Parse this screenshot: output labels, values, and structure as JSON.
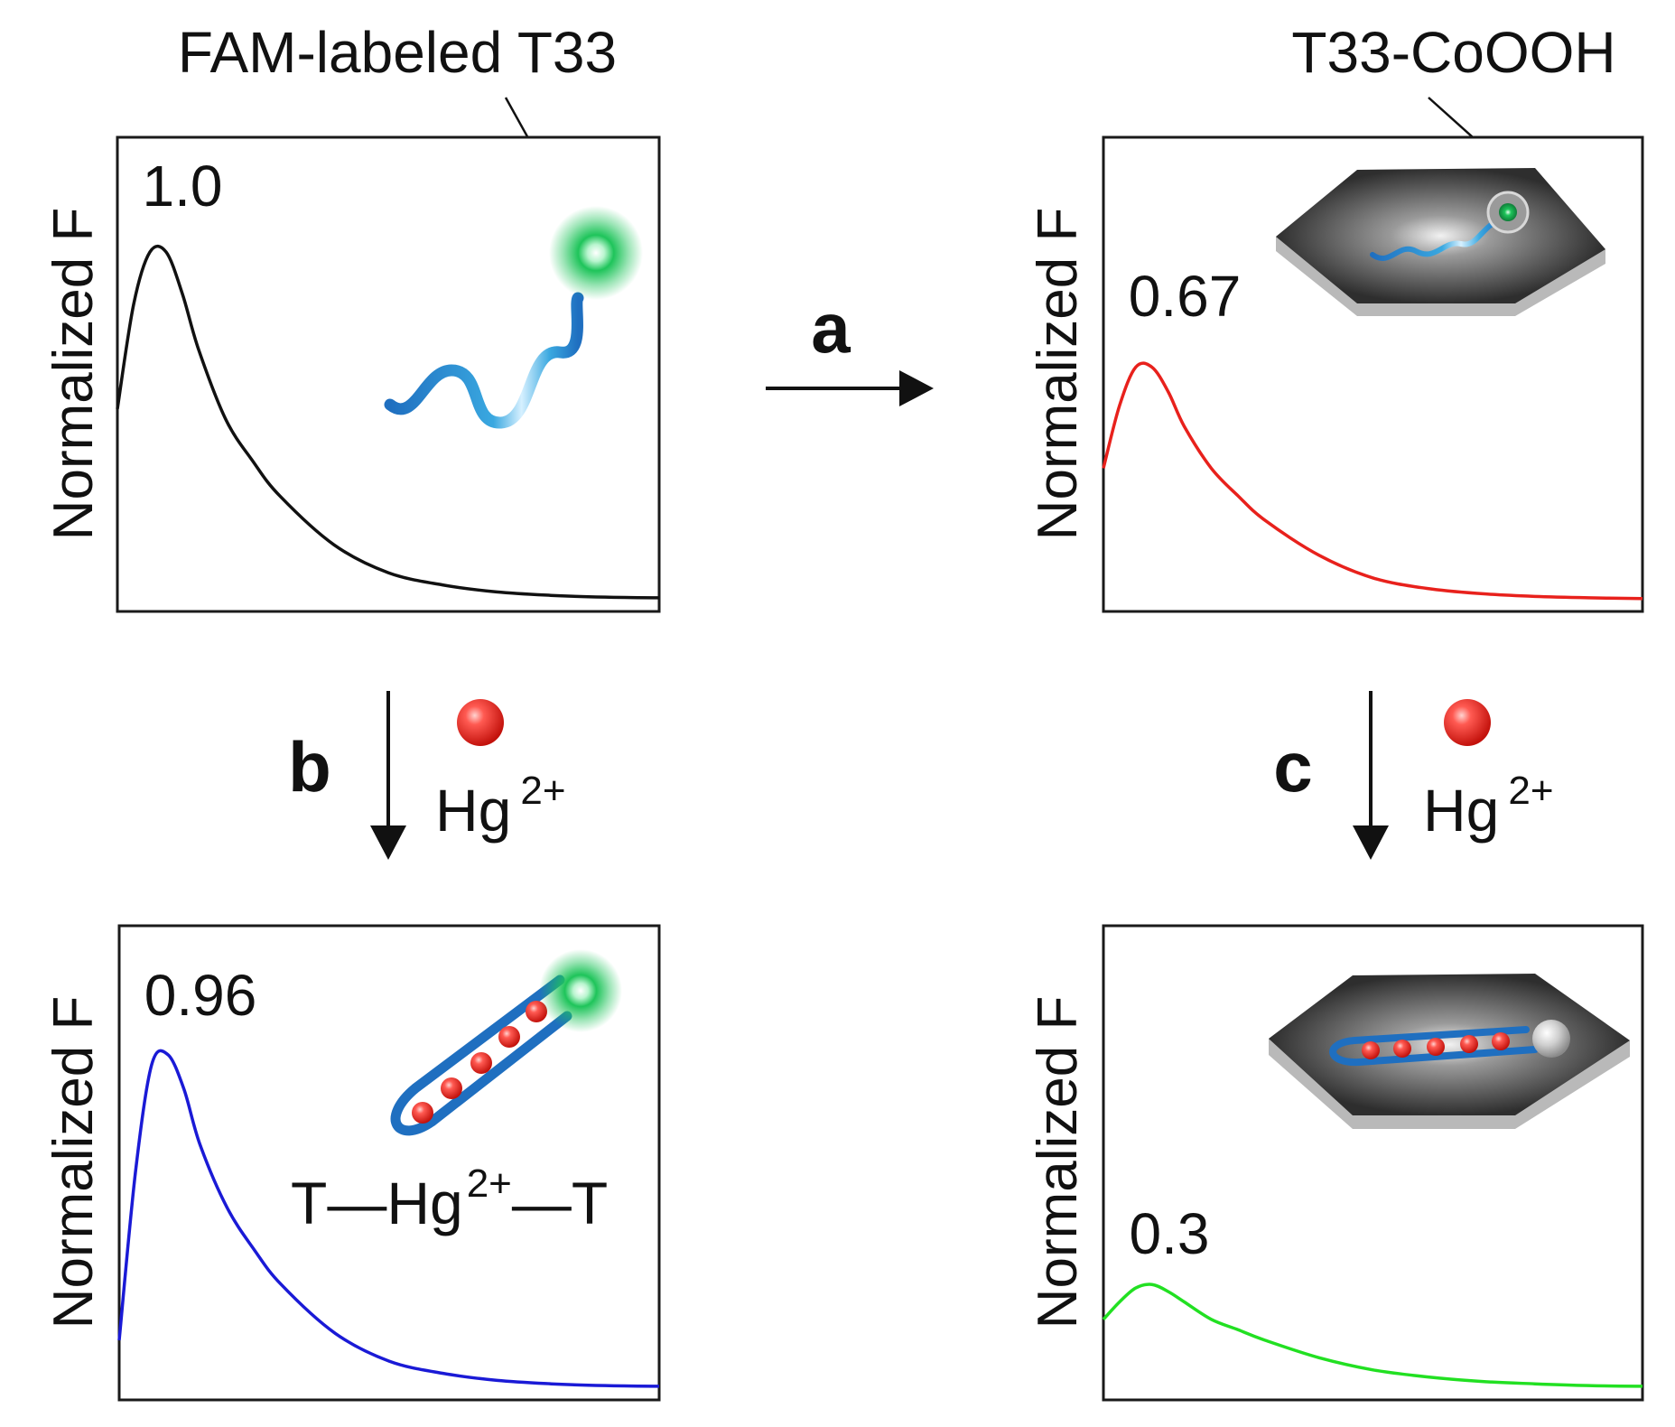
{
  "title_left": "FAM-labeled T33",
  "title_right": "T33-CoOOH",
  "y_axis_label": "Normalized F",
  "steps": {
    "a": {
      "label": "a"
    },
    "b": {
      "label": "b",
      "ion": "Hg",
      "ion_sup": "2+"
    },
    "c": {
      "label": "c",
      "ion": "Hg",
      "ion_sup": "2+"
    }
  },
  "complex_label": {
    "left": "T—Hg",
    "sup": "2+",
    "right": "—T"
  },
  "colors": {
    "black_curve": "#111111",
    "red_curve": "#e8211c",
    "blue_curve": "#1a1ad6",
    "green_curve": "#22e022",
    "dna_strand": "#1f6fc0",
    "hg_ion": "#e8241f",
    "fam_glow": "#1ec45a",
    "cooh_sheet": "#2a2a2a"
  },
  "chart_data": [
    {
      "type": "line",
      "panel": "top-left",
      "ylabel": "Normalized F",
      "peak_label": "1.0",
      "peak_value": 1.0,
      "color": "#111111",
      "series": [
        {
          "name": "FAM-labeled T33",
          "x": [
            0,
            0.03,
            0.06,
            0.09,
            0.12,
            0.15,
            0.2,
            0.25,
            0.3,
            0.4,
            0.5,
            0.6,
            0.7,
            0.8,
            0.9,
            1.0
          ],
          "values": [
            0.55,
            0.85,
            1.0,
            1.0,
            0.88,
            0.72,
            0.52,
            0.4,
            0.3,
            0.16,
            0.08,
            0.045,
            0.025,
            0.015,
            0.01,
            0.008
          ]
        }
      ]
    },
    {
      "type": "line",
      "panel": "top-right",
      "ylabel": "Normalized F",
      "peak_label": "0.67",
      "peak_value": 0.67,
      "color": "#e8211c",
      "series": [
        {
          "name": "T33-CoOOH",
          "x": [
            0,
            0.03,
            0.06,
            0.09,
            0.12,
            0.15,
            0.2,
            0.25,
            0.3,
            0.4,
            0.5,
            0.6,
            0.7,
            0.8,
            0.9,
            1.0
          ],
          "values": [
            0.38,
            0.56,
            0.67,
            0.67,
            0.6,
            0.5,
            0.38,
            0.3,
            0.23,
            0.13,
            0.065,
            0.035,
            0.02,
            0.012,
            0.008,
            0.006
          ]
        }
      ]
    },
    {
      "type": "line",
      "panel": "bottom-left",
      "ylabel": "Normalized F",
      "peak_label": "0.96",
      "peak_value": 0.96,
      "color": "#1a1ad6",
      "series": [
        {
          "name": "T-Hg2+-T",
          "x": [
            0,
            0.03,
            0.06,
            0.09,
            0.12,
            0.15,
            0.2,
            0.25,
            0.3,
            0.4,
            0.5,
            0.6,
            0.7,
            0.8,
            0.9,
            1.0
          ],
          "values": [
            0.14,
            0.62,
            0.93,
            0.96,
            0.86,
            0.7,
            0.52,
            0.4,
            0.3,
            0.16,
            0.08,
            0.045,
            0.025,
            0.015,
            0.01,
            0.008
          ]
        }
      ]
    },
    {
      "type": "line",
      "panel": "bottom-right",
      "ylabel": "Normalized F",
      "peak_label": "0.3",
      "peak_value": 0.3,
      "color": "#22e022",
      "series": [
        {
          "name": "T-Hg2+-T on CoOOH",
          "x": [
            0,
            0.03,
            0.06,
            0.09,
            0.12,
            0.15,
            0.2,
            0.25,
            0.3,
            0.4,
            0.5,
            0.6,
            0.7,
            0.8,
            0.9,
            1.0
          ],
          "values": [
            0.2,
            0.25,
            0.29,
            0.3,
            0.28,
            0.25,
            0.2,
            0.17,
            0.14,
            0.09,
            0.055,
            0.035,
            0.022,
            0.015,
            0.01,
            0.008
          ]
        }
      ]
    }
  ]
}
